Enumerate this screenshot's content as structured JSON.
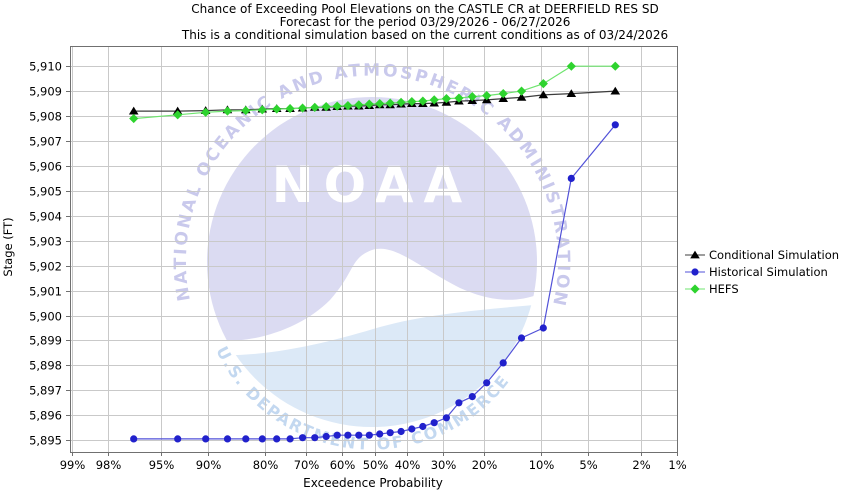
{
  "header": {
    "title_lines": [
      "Chance of Exceeding Pool Elevations on the CASTLE CR at DEERFIELD RES SD",
      "Forecast for the period 03/29/2026 - 06/27/2026",
      "This is a conditional simulation based on the current conditions as of 03/24/2026"
    ]
  },
  "chart_data": {
    "type": "line",
    "title": "Chance of Exceeding Pool Elevations on the CASTLE CR at DEERFIELD RES SD",
    "subtitle": "Forecast for the period 03/29/2026 - 06/27/2026",
    "note": "This is a conditional simulation based on the current conditions as of 03/24/2026",
    "xlabel": "Exceedence Probability",
    "ylabel": "Stage (FT)",
    "grid": true,
    "legend_position": "right",
    "x_axis": {
      "scale": "normal-probability",
      "tick_labels": [
        "99%",
        "98%",
        "95%",
        "90%",
        "80%",
        "70%",
        "60%",
        "50%",
        "40%",
        "30%",
        "20%",
        "10%",
        "5%",
        "2%",
        "1%"
      ],
      "tick_values": [
        99,
        98,
        95,
        90,
        80,
        70,
        60,
        50,
        40,
        30,
        20,
        10,
        5,
        2,
        1
      ],
      "range": [
        99,
        1
      ]
    },
    "y_axis": {
      "tick_labels": [
        "5,895",
        "5,896",
        "5,897",
        "5,898",
        "5,899",
        "5,900",
        "5,901",
        "5,902",
        "5,903",
        "5,904",
        "5,905",
        "5,906",
        "5,907",
        "5,908",
        "5,909",
        "5,910"
      ],
      "tick_values": [
        5895,
        5896,
        5897,
        5898,
        5899,
        5900,
        5901,
        5902,
        5903,
        5904,
        5905,
        5906,
        5907,
        5908,
        5909,
        5910
      ],
      "range": [
        5894.5,
        5910.8
      ]
    },
    "x": [
      96.8,
      93.5,
      90.3,
      87.1,
      83.9,
      80.6,
      77.4,
      74.2,
      71.0,
      67.7,
      64.5,
      61.3,
      58.1,
      54.8,
      51.6,
      48.4,
      45.2,
      41.9,
      38.7,
      35.5,
      32.3,
      29.0,
      25.8,
      22.6,
      19.4,
      16.1,
      12.9,
      9.7,
      6.5,
      3.2
    ],
    "series": [
      {
        "name": "Conditional Simulation",
        "marker": "triangle",
        "color": "#000000",
        "line_color": "#3c3c3c",
        "values": [
          5908.2,
          5908.2,
          5908.22,
          5908.25,
          5908.25,
          5908.28,
          5908.3,
          5908.3,
          5908.32,
          5908.35,
          5908.35,
          5908.38,
          5908.4,
          5908.4,
          5908.42,
          5908.45,
          5908.45,
          5908.48,
          5908.5,
          5908.5,
          5908.52,
          5908.55,
          5908.6,
          5908.62,
          5908.65,
          5908.7,
          5908.75,
          5908.85,
          5908.9,
          5909.0
        ]
      },
      {
        "name": "Historical Simulation",
        "marker": "circle",
        "color": "#2121cc",
        "line_color": "#5151d8",
        "values": [
          5895.05,
          5895.05,
          5895.05,
          5895.05,
          5895.05,
          5895.05,
          5895.05,
          5895.05,
          5895.1,
          5895.1,
          5895.15,
          5895.2,
          5895.2,
          5895.2,
          5895.2,
          5895.25,
          5895.3,
          5895.35,
          5895.45,
          5895.55,
          5895.7,
          5895.9,
          5896.5,
          5896.75,
          5897.3,
          5898.1,
          5899.1,
          5899.5,
          5905.5,
          5907.65
        ]
      },
      {
        "name": "HEFS",
        "marker": "diamond",
        "color": "#2ed32e",
        "line_color": "#6fe46f",
        "values": [
          5907.9,
          5908.05,
          5908.15,
          5908.2,
          5908.22,
          5908.25,
          5908.28,
          5908.3,
          5908.32,
          5908.35,
          5908.38,
          5908.4,
          5908.42,
          5908.45,
          5908.48,
          5908.5,
          5908.52,
          5908.55,
          5908.58,
          5908.6,
          5908.65,
          5908.7,
          5908.72,
          5908.78,
          5908.82,
          5908.9,
          5909.0,
          5909.3,
          5910.0,
          5910.0
        ]
      }
    ],
    "watermark": {
      "top_text": "NATIONAL OCEANIC AND ATMOSPHERIC ADMINISTRATION",
      "bottom_text": "U.S. DEPARTMENT OF COMMERCE",
      "center_text": "NOAA",
      "sky_color": "#dbdbf2",
      "sea_color": "#dce9f7",
      "ring_top_color": "#c9c9ec",
      "ring_bottom_color": "#c3d8f0"
    },
    "style": {
      "grid_color": "#c9c9c9",
      "frame_color": "#707070",
      "text_color": "#000000"
    }
  }
}
